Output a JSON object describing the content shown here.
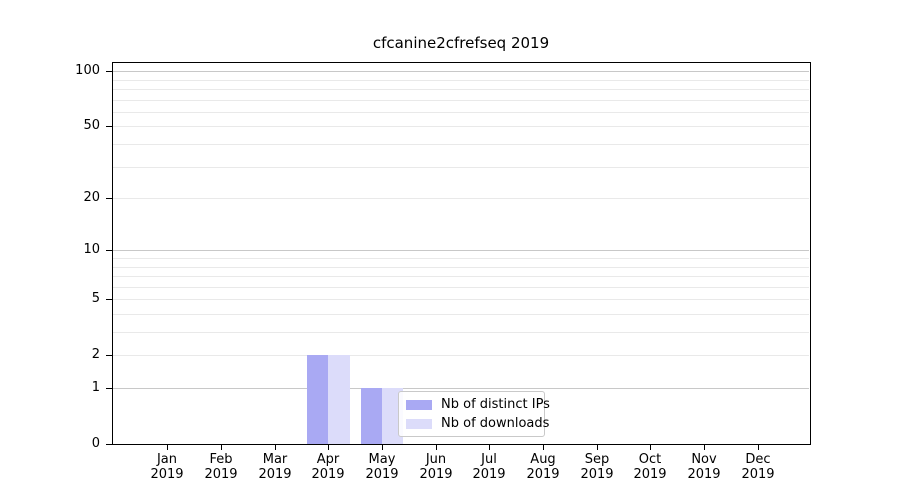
{
  "title": "cfcanine2cfrefseq 2019",
  "chart_data": {
    "type": "bar",
    "title": "cfcanine2cfrefseq 2019",
    "x_months": [
      "Jan",
      "Feb",
      "Mar",
      "Apr",
      "May",
      "Jun",
      "Jul",
      "Aug",
      "Sep",
      "Oct",
      "Nov",
      "Dec"
    ],
    "x_year": "2019",
    "series": [
      {
        "name": "Nb of distinct IPs",
        "color": "#a9a9f3",
        "values": [
          0,
          0,
          0,
          2,
          1,
          0,
          0,
          0,
          0,
          0,
          0,
          0
        ]
      },
      {
        "name": "Nb of downloads",
        "color": "#dcdcfa",
        "values": [
          0,
          0,
          0,
          2,
          1,
          0,
          0,
          0,
          0,
          0,
          0,
          0
        ]
      }
    ],
    "y_scale": "log1p",
    "y_tick_labels": [
      0,
      1,
      2,
      5,
      10,
      20,
      50,
      100
    ],
    "y_major_gridlines": [
      1,
      10,
      100
    ],
    "y_minor_gridlines": [
      2,
      3,
      4,
      5,
      6,
      7,
      8,
      9,
      20,
      30,
      40,
      50,
      60,
      70,
      80,
      90
    ],
    "ylim": [
      0,
      110
    ],
    "grid": true,
    "legend_position": "inside-lower-center-left"
  }
}
